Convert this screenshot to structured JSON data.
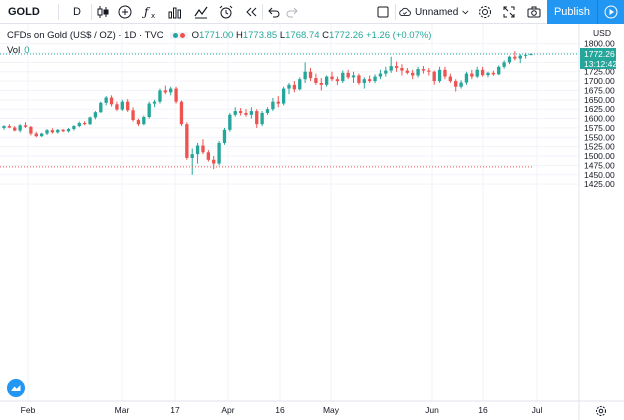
{
  "toolbar": {
    "symbol": "GOLD",
    "interval": "D",
    "layout_name": "Unnamed",
    "publish_label": "Publish"
  },
  "legend": {
    "title": "CFDs on Gold (US$ / OZ) · 1D · TVC",
    "open_key": "O",
    "open": "1771.00",
    "high_key": "H",
    "high": "1773.85",
    "low_key": "L",
    "low": "1768.74",
    "close_key": "C",
    "close": "1772.26",
    "change": "+1.26 (+0.07%)",
    "vol_label": "Vol",
    "vol_value": "0"
  },
  "price_axis": {
    "currency": "USD",
    "ticks": [
      "1800.00",
      "1775.00",
      "1750.00",
      "1725.00",
      "1700.00",
      "1675.00",
      "1650.00",
      "1625.00",
      "1600.00",
      "1575.00",
      "1550.00",
      "1525.00",
      "1500.00",
      "1475.00",
      "1450.00",
      "1425.00"
    ],
    "current_price": "1772.26",
    "countdown": "13:12:42"
  },
  "time_axis": {
    "labels": [
      "Feb",
      "Mar",
      "17",
      "Apr",
      "16",
      "May",
      "Jun",
      "16",
      "Jul"
    ]
  },
  "colors": {
    "up": "#26a69a",
    "down": "#ef5350",
    "accent": "#2196f3",
    "grid": "#f0f3fa"
  },
  "chart_data": {
    "type": "candlestick",
    "y_min": 1425,
    "y_max": 1800,
    "high_line": 1772.26,
    "low_line": 1471,
    "candles": [
      [
        1575,
        1582,
        1570,
        1580
      ],
      [
        1580,
        1585,
        1574,
        1576
      ],
      [
        1576,
        1580,
        1566,
        1568
      ],
      [
        1568,
        1585,
        1563,
        1582
      ],
      [
        1582,
        1590,
        1575,
        1578
      ],
      [
        1578,
        1580,
        1555,
        1560
      ],
      [
        1560,
        1565,
        1550,
        1553
      ],
      [
        1553,
        1562,
        1551,
        1560
      ],
      [
        1560,
        1572,
        1556,
        1569
      ],
      [
        1569,
        1574,
        1560,
        1563
      ],
      [
        1563,
        1572,
        1560,
        1570
      ],
      [
        1570,
        1572,
        1564,
        1566
      ],
      [
        1566,
        1575,
        1563,
        1572
      ],
      [
        1572,
        1582,
        1568,
        1580
      ],
      [
        1580,
        1592,
        1577,
        1588
      ],
      [
        1588,
        1593,
        1582,
        1585
      ],
      [
        1585,
        1605,
        1583,
        1603
      ],
      [
        1603,
        1620,
        1598,
        1617
      ],
      [
        1617,
        1645,
        1615,
        1642
      ],
      [
        1642,
        1660,
        1635,
        1656
      ],
      [
        1656,
        1662,
        1632,
        1638
      ],
      [
        1638,
        1645,
        1620,
        1624
      ],
      [
        1624,
        1650,
        1620,
        1645
      ],
      [
        1645,
        1652,
        1618,
        1622
      ],
      [
        1622,
        1630,
        1592,
        1596
      ],
      [
        1596,
        1600,
        1580,
        1585
      ],
      [
        1585,
        1608,
        1582,
        1604
      ],
      [
        1604,
        1645,
        1600,
        1640
      ],
      [
        1640,
        1650,
        1630,
        1645
      ],
      [
        1645,
        1680,
        1640,
        1675
      ],
      [
        1675,
        1688,
        1665,
        1670
      ],
      [
        1670,
        1685,
        1662,
        1680
      ],
      [
        1680,
        1685,
        1640,
        1645
      ],
      [
        1645,
        1648,
        1580,
        1585
      ],
      [
        1585,
        1590,
        1490,
        1495
      ],
      [
        1495,
        1520,
        1450,
        1505
      ],
      [
        1505,
        1535,
        1480,
        1528
      ],
      [
        1528,
        1545,
        1505,
        1510
      ],
      [
        1510,
        1516,
        1485,
        1490
      ],
      [
        1490,
        1500,
        1465,
        1480
      ],
      [
        1480,
        1540,
        1475,
        1535
      ],
      [
        1535,
        1575,
        1530,
        1570
      ],
      [
        1570,
        1615,
        1565,
        1610
      ],
      [
        1610,
        1630,
        1605,
        1620
      ],
      [
        1620,
        1628,
        1608,
        1615
      ],
      [
        1615,
        1625,
        1605,
        1610
      ],
      [
        1610,
        1630,
        1600,
        1620
      ],
      [
        1620,
        1625,
        1575,
        1585
      ],
      [
        1585,
        1620,
        1580,
        1615
      ],
      [
        1615,
        1630,
        1610,
        1625
      ],
      [
        1625,
        1655,
        1620,
        1645
      ],
      [
        1645,
        1660,
        1630,
        1640
      ],
      [
        1640,
        1685,
        1635,
        1680
      ],
      [
        1680,
        1695,
        1665,
        1690
      ],
      [
        1690,
        1700,
        1670,
        1678
      ],
      [
        1678,
        1710,
        1675,
        1705
      ],
      [
        1705,
        1750,
        1695,
        1725
      ],
      [
        1725,
        1735,
        1700,
        1708
      ],
      [
        1708,
        1720,
        1690,
        1695
      ],
      [
        1695,
        1708,
        1675,
        1690
      ],
      [
        1690,
        1715,
        1685,
        1712
      ],
      [
        1712,
        1725,
        1700,
        1705
      ],
      [
        1705,
        1712,
        1690,
        1700
      ],
      [
        1700,
        1728,
        1695,
        1722
      ],
      [
        1722,
        1730,
        1705,
        1710
      ],
      [
        1710,
        1725,
        1695,
        1715
      ],
      [
        1715,
        1720,
        1690,
        1695
      ],
      [
        1695,
        1710,
        1680,
        1705
      ],
      [
        1705,
        1715,
        1695,
        1700
      ],
      [
        1700,
        1718,
        1695,
        1712
      ],
      [
        1712,
        1730,
        1705,
        1720
      ],
      [
        1720,
        1738,
        1712,
        1728
      ],
      [
        1728,
        1765,
        1722,
        1740
      ],
      [
        1740,
        1752,
        1725,
        1735
      ],
      [
        1735,
        1745,
        1715,
        1728
      ],
      [
        1728,
        1735,
        1718,
        1722
      ],
      [
        1722,
        1730,
        1705,
        1715
      ],
      [
        1715,
        1738,
        1710,
        1732
      ],
      [
        1732,
        1740,
        1720,
        1728
      ],
      [
        1728,
        1735,
        1715,
        1725
      ],
      [
        1725,
        1728,
        1690,
        1700
      ],
      [
        1700,
        1738,
        1695,
        1730
      ],
      [
        1730,
        1738,
        1705,
        1712
      ],
      [
        1712,
        1720,
        1695,
        1700
      ],
      [
        1700,
        1705,
        1672,
        1685
      ],
      [
        1685,
        1702,
        1680,
        1696
      ],
      [
        1696,
        1725,
        1690,
        1720
      ],
      [
        1720,
        1730,
        1705,
        1712
      ],
      [
        1712,
        1738,
        1708,
        1730
      ],
      [
        1730,
        1738,
        1712,
        1716
      ],
      [
        1716,
        1725,
        1710,
        1722
      ],
      [
        1722,
        1728,
        1714,
        1718
      ],
      [
        1718,
        1742,
        1716,
        1738
      ],
      [
        1738,
        1755,
        1733,
        1750
      ],
      [
        1750,
        1768,
        1745,
        1765
      ],
      [
        1765,
        1780,
        1755,
        1760
      ],
      [
        1760,
        1772,
        1748,
        1768
      ],
      [
        1768,
        1775,
        1760,
        1770
      ],
      [
        1771,
        1773.85,
        1768.74,
        1772.26
      ]
    ]
  }
}
